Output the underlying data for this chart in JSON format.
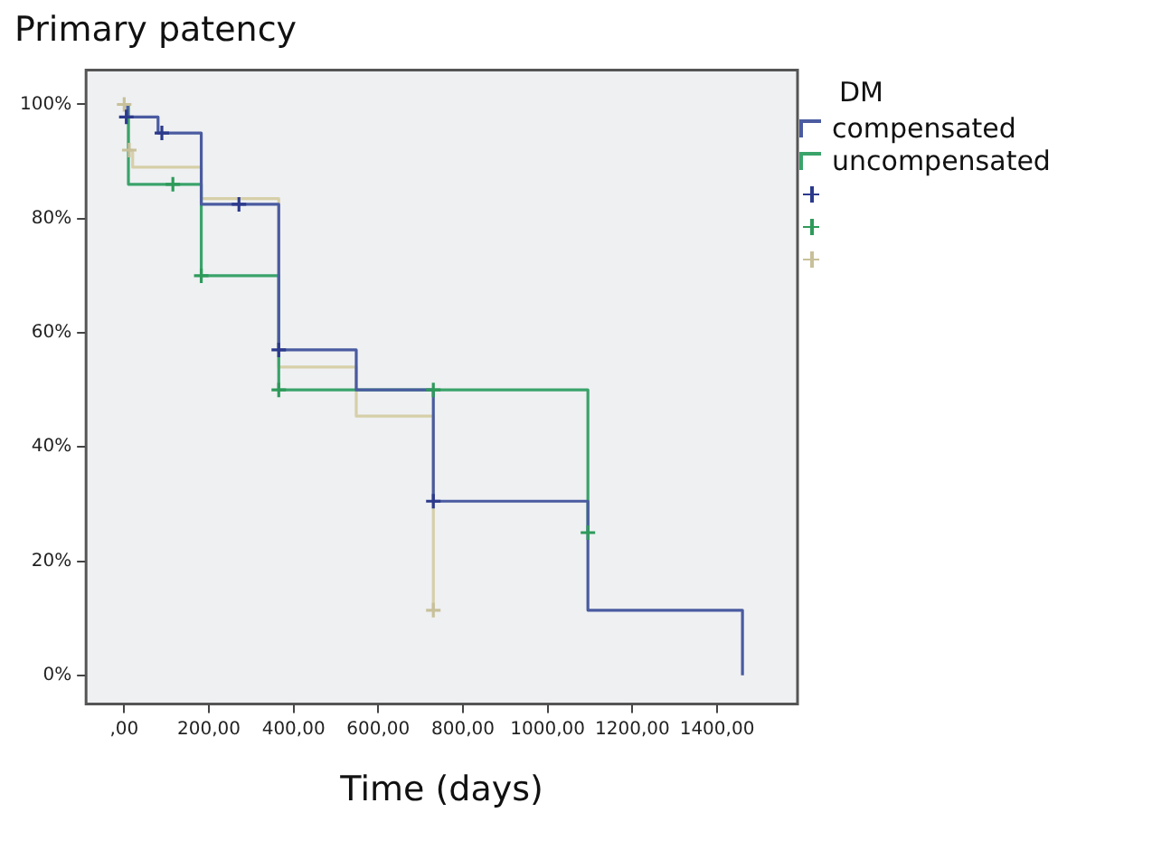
{
  "chart_data": {
    "type": "step",
    "title": "Primary patency",
    "xlabel": "Time (days)",
    "legend_title": "DM",
    "legend": "right",
    "grid": false,
    "xlim": [
      -90,
      1590
    ],
    "xticks": [
      {
        "value": 0,
        "label": ",00"
      },
      {
        "value": 200,
        "label": "200,00"
      },
      {
        "value": 400,
        "label": "400,00"
      },
      {
        "value": 600,
        "label": "600,00"
      },
      {
        "value": 800,
        "label": "800,00"
      },
      {
        "value": 1000,
        "label": "1000,00"
      },
      {
        "value": 1200,
        "label": "1200,00"
      },
      {
        "value": 1400,
        "label": "1400,00"
      }
    ],
    "ylim": [
      -5,
      106
    ],
    "yticks": [
      {
        "value": 0,
        "label": "0%"
      },
      {
        "value": 20,
        "label": "20%"
      },
      {
        "value": 40,
        "label": "40%"
      },
      {
        "value": 60,
        "label": "60%"
      },
      {
        "value": 80,
        "label": "80%"
      },
      {
        "value": 100,
        "label": "100%"
      }
    ],
    "series": [
      {
        "name": "compensated",
        "type": "step",
        "color": "#4a5ba0",
        "x": [
          0,
          8,
          80,
          182,
          365,
          548,
          730,
          1095,
          1460
        ],
        "values": [
          100,
          97.8,
          95,
          82.5,
          57,
          50,
          30.5,
          11.4,
          0
        ]
      },
      {
        "name": "uncompensated",
        "type": "step",
        "color": "#3aa36a",
        "x": [
          0,
          10,
          182,
          365,
          1095
        ],
        "values": [
          100,
          86,
          70,
          50,
          25
        ]
      },
      {
        "type": "step",
        "color": "#d6cfa8",
        "x": [
          0,
          10,
          20,
          182,
          365,
          548,
          730
        ],
        "values": [
          100,
          92,
          89,
          83.5,
          54,
          45.4,
          11.4
        ]
      },
      {
        "type": "scatter",
        "marker": "cross",
        "color": "#2c3a8c",
        "x": [
          5,
          89,
          271,
          365,
          730
        ],
        "values": [
          97.8,
          95,
          82.5,
          57,
          30.5
        ]
      },
      {
        "type": "scatter",
        "marker": "cross",
        "color": "#2e9a5a",
        "x": [
          115,
          182,
          365,
          730,
          1095
        ],
        "values": [
          86,
          70,
          50,
          50,
          25
        ]
      },
      {
        "type": "scatter",
        "marker": "cross",
        "color": "#c8c09a",
        "x": [
          0,
          12,
          730
        ],
        "values": [
          100,
          92,
          11.4
        ]
      }
    ]
  }
}
